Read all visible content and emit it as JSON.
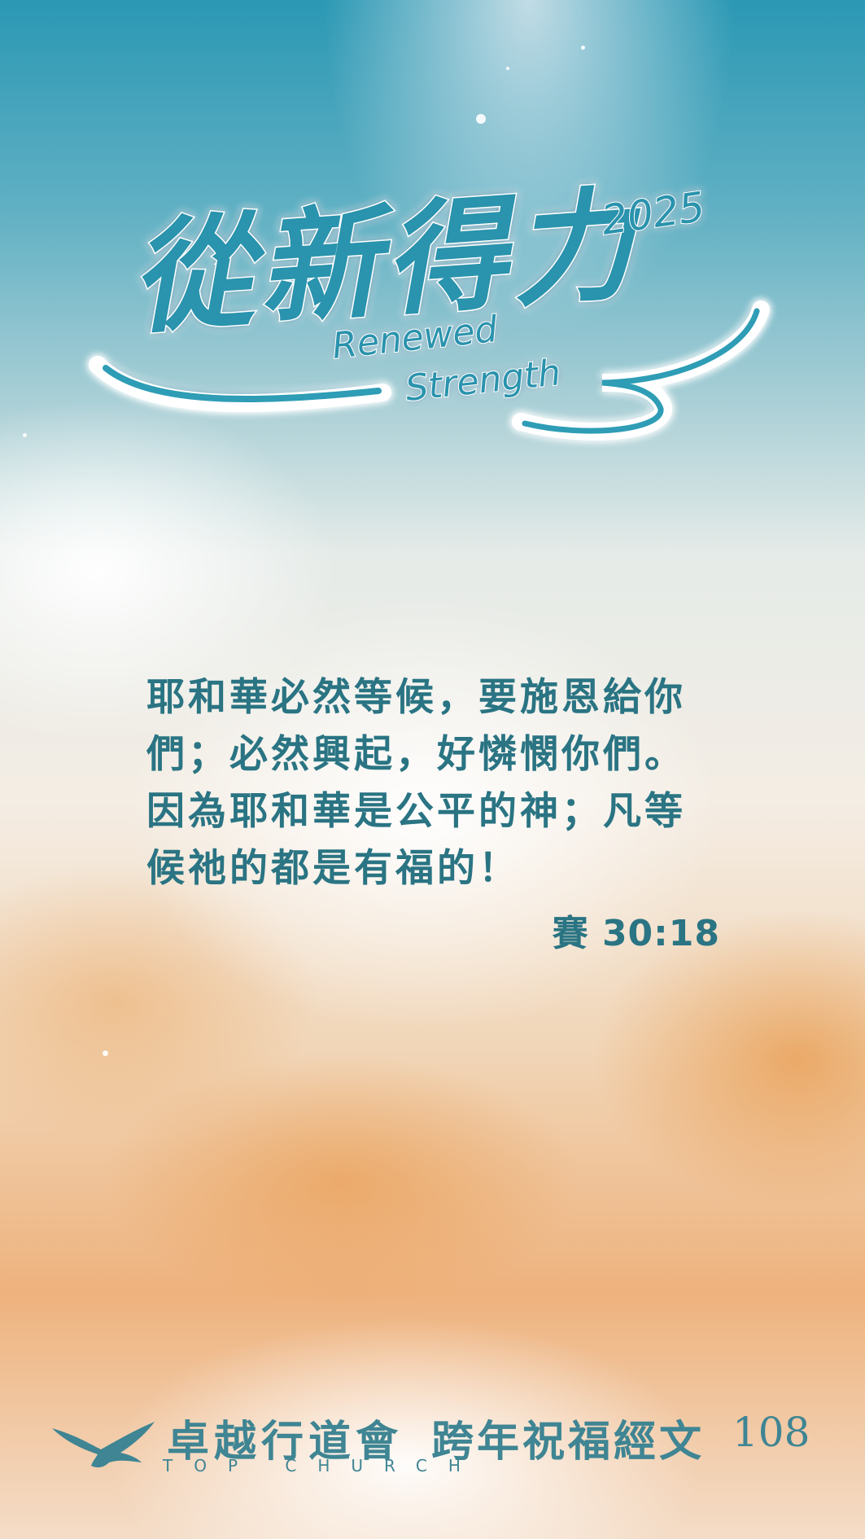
{
  "logo": {
    "chinese_title": "從新得力",
    "year": "2025",
    "english_line1": "Renewed",
    "english_line2": "Strength"
  },
  "verse": {
    "lines": [
      "耶和華必然等候，要施恩給你",
      "們；必然興起，好憐憫你們。",
      "因為耶和華是公平的神；凡等",
      "候祂的都是有福的！"
    ],
    "reference": "賽 30:18"
  },
  "footer": {
    "church_name": "卓越行道會",
    "church_name_en": "TOP CHURCH",
    "label": "跨年祝福經文",
    "page_number": "108"
  },
  "colors": {
    "text_teal": "#2a7483",
    "footer_teal": "#3f8593",
    "sky_top": "#2b98b4",
    "cloud_orange": "#e7923e"
  },
  "icons": {
    "logo_mark": "eagle-icon"
  }
}
